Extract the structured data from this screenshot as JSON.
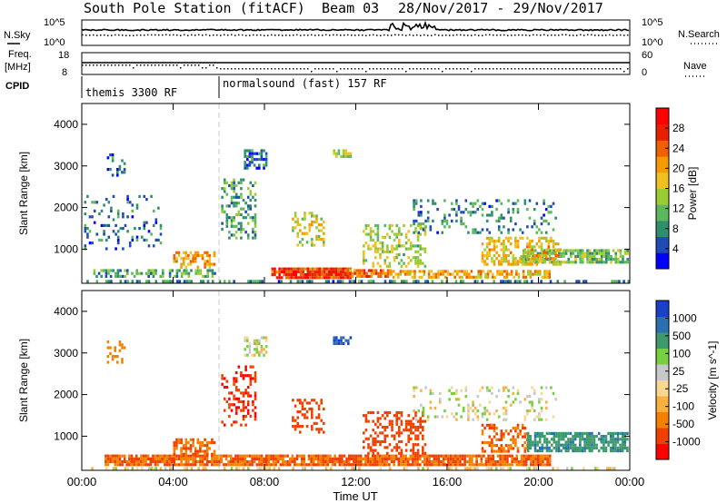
{
  "header": {
    "station": "South Pole Station (fitACF)",
    "beam": "Beam 03",
    "dates": "28/Nov/2017 - 29/Nov/2017"
  },
  "time_axis": {
    "ticks": [
      "00:00",
      "04:00",
      "08:00",
      "12:00",
      "16:00",
      "20:00",
      "00:00"
    ],
    "label": "Time UT"
  },
  "nsky_panel": {
    "left_label": "N.Sky",
    "left_ticks": [
      "10^5",
      "10^0"
    ],
    "right_ticks": [
      "10^5",
      "10^0"
    ],
    "right_label": "N.Search"
  },
  "freq_panel": {
    "left_label_1": "Freq.",
    "left_label_2": "[MHz]",
    "left_ticks": [
      "18",
      "8"
    ],
    "right_ticks": [
      "60",
      "0"
    ],
    "right_label": "Nave"
  },
  "cpid_panel": {
    "label": "CPID",
    "mode_1": "themis 3300 RF",
    "mode_2": "normalsound (fast) 157 RF"
  },
  "colors": {
    "power": [
      "#0000ff",
      "#1e4bb4",
      "#2f8f6a",
      "#5cb85c",
      "#9acd32",
      "#f0c020",
      "#f59a00",
      "#f06000",
      "#e82000",
      "#ff0000"
    ],
    "velocity": [
      "#ff0000",
      "#f04000",
      "#f58000",
      "#f8b040",
      "#f8d890",
      "#c8c8c8",
      "#78d040",
      "#3c9a6c",
      "#2a70b0",
      "#1a40c8"
    ]
  },
  "chart_data": [
    {
      "type": "heatmap",
      "title": "Power",
      "ylabel": "Slant Range [km]",
      "xlabel": "",
      "x_range_hours": [
        0,
        24
      ],
      "ylim": [
        180,
        4500
      ],
      "yticks": [
        1000,
        2000,
        3000,
        4000
      ],
      "colorbar": {
        "label": "Power [dB]",
        "ticks": [
          4,
          8,
          12,
          16,
          20,
          24,
          28
        ],
        "range": [
          0,
          32
        ]
      },
      "grid": false,
      "blobs": [
        {
          "t0": 0.1,
          "t1": 24.0,
          "r0": 200,
          "r1": 260,
          "val": 8,
          "density": 0.5
        },
        {
          "t0": 0.5,
          "t1": 5.8,
          "r0": 380,
          "r1": 520,
          "val": 10,
          "density": 0.45
        },
        {
          "t0": 8.3,
          "t1": 11.8,
          "r0": 350,
          "r1": 560,
          "val": 27,
          "density": 0.95
        },
        {
          "t0": 11.5,
          "t1": 13.5,
          "r0": 350,
          "r1": 520,
          "val": 24,
          "density": 0.85
        },
        {
          "t0": 13.5,
          "t1": 20.5,
          "r0": 350,
          "r1": 500,
          "val": 20,
          "density": 0.6
        },
        {
          "t0": 4.0,
          "t1": 5.8,
          "r0": 600,
          "r1": 950,
          "val": 20,
          "density": 0.6
        },
        {
          "t0": 19.2,
          "t1": 23.9,
          "r0": 700,
          "r1": 1000,
          "val": 12,
          "density": 0.75
        },
        {
          "t0": 17.5,
          "t1": 21.0,
          "r0": 650,
          "r1": 1300,
          "val": 18,
          "density": 0.5
        },
        {
          "t0": 12.3,
          "t1": 15.0,
          "r0": 600,
          "r1": 1600,
          "val": 14,
          "density": 0.4
        },
        {
          "t0": 6.1,
          "t1": 7.6,
          "r0": 1300,
          "r1": 2700,
          "val": 10,
          "density": 0.35
        },
        {
          "t0": 9.2,
          "t1": 10.6,
          "r0": 1100,
          "r1": 1900,
          "val": 16,
          "density": 0.35
        },
        {
          "t0": 1.1,
          "t1": 1.9,
          "r0": 2800,
          "r1": 3300,
          "val": 5,
          "density": 0.3
        },
        {
          "t0": 7.1,
          "t1": 8.1,
          "r0": 2950,
          "r1": 3400,
          "val": 6,
          "density": 0.5
        },
        {
          "t0": 11.0,
          "t1": 11.8,
          "r0": 3250,
          "r1": 3400,
          "val": 14,
          "density": 0.6
        },
        {
          "t0": 14.5,
          "t1": 20.8,
          "r0": 1400,
          "r1": 2200,
          "val": 8,
          "density": 0.2
        },
        {
          "t0": 0.1,
          "t1": 3.5,
          "r0": 1000,
          "r1": 2300,
          "val": 6,
          "density": 0.15
        }
      ]
    },
    {
      "type": "heatmap",
      "title": "Velocity",
      "ylabel": "Slant Range [km]",
      "xlabel": "Time UT",
      "x_range_hours": [
        0,
        24
      ],
      "ylim": [
        180,
        4500
      ],
      "yticks": [
        1000,
        2000,
        3000,
        4000
      ],
      "colorbar": {
        "label": "Velocity [m s^-1]",
        "ticks": [
          "1000",
          "500",
          "100",
          "25",
          "-25",
          "-100",
          "-500",
          "-1000"
        ]
      },
      "grid": false,
      "blobs": [
        {
          "t0": 0.1,
          "t1": 24.0,
          "r0": 200,
          "r1": 260,
          "val": -30,
          "density": 0.35
        },
        {
          "t0": 1.0,
          "t1": 20.5,
          "r0": 350,
          "r1": 560,
          "val": -300,
          "density": 0.85
        },
        {
          "t0": 4.0,
          "t1": 5.8,
          "r0": 600,
          "r1": 950,
          "val": -300,
          "density": 0.6
        },
        {
          "t0": 6.1,
          "t1": 7.6,
          "r0": 1300,
          "r1": 2700,
          "val": -700,
          "density": 0.35
        },
        {
          "t0": 9.2,
          "t1": 10.6,
          "r0": 1100,
          "r1": 1900,
          "val": -400,
          "density": 0.4
        },
        {
          "t0": 12.3,
          "t1": 15.0,
          "r0": 600,
          "r1": 1600,
          "val": -600,
          "density": 0.4
        },
        {
          "t0": 17.5,
          "t1": 19.5,
          "r0": 650,
          "r1": 1300,
          "val": -300,
          "density": 0.45
        },
        {
          "t0": 19.5,
          "t1": 23.9,
          "r0": 650,
          "r1": 1100,
          "val": 250,
          "density": 0.75
        },
        {
          "t0": 1.1,
          "t1": 1.9,
          "r0": 2800,
          "r1": 3300,
          "val": -200,
          "density": 0.3
        },
        {
          "t0": 7.1,
          "t1": 8.1,
          "r0": 2950,
          "r1": 3400,
          "val": 0,
          "density": 0.5
        },
        {
          "t0": 11.0,
          "t1": 11.8,
          "r0": 3250,
          "r1": 3400,
          "val": 700,
          "density": 0.6
        },
        {
          "t0": 14.5,
          "t1": 20.8,
          "r0": 1400,
          "r1": 2200,
          "val": 0,
          "density": 0.2
        }
      ]
    }
  ]
}
